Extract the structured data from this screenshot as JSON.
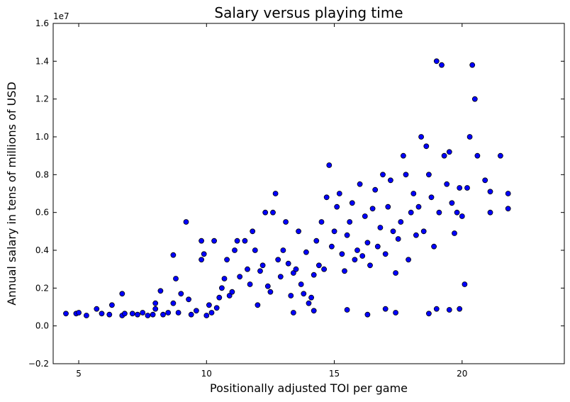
{
  "chart_data": {
    "type": "scatter",
    "title": "Salary versus playing time",
    "xlabel": "Positionally adjusted TOI per game",
    "ylabel": "Annual salary in tens of millions of USD",
    "y_offset_label": "1e7",
    "xlim": [
      4,
      24
    ],
    "ylim": [
      -2000000,
      16000000
    ],
    "xticks": [
      5,
      10,
      15,
      20
    ],
    "yticks": [
      -2000000,
      0,
      2000000,
      4000000,
      6000000,
      8000000,
      10000000,
      12000000,
      14000000,
      16000000
    ],
    "xtick_labels": [
      "5",
      "10",
      "15",
      "20"
    ],
    "ytick_labels": [
      "−0.2",
      "0.0",
      "0.2",
      "0.4",
      "0.6",
      "0.8",
      "1.0",
      "1.2",
      "1.4",
      "1.6"
    ],
    "grid": false,
    "marker_color": "#0000ff",
    "marker_edge": "#000000",
    "points": [
      [
        4.5,
        650000
      ],
      [
        4.9,
        650000
      ],
      [
        5.0,
        700000
      ],
      [
        5.3,
        550000
      ],
      [
        5.7,
        900000
      ],
      [
        5.9,
        650000
      ],
      [
        6.2,
        600000
      ],
      [
        6.3,
        1100000
      ],
      [
        6.7,
        550000
      ],
      [
        6.8,
        650000
      ],
      [
        6.7,
        1700000
      ],
      [
        7.1,
        650000
      ],
      [
        7.3,
        600000
      ],
      [
        7.5,
        700000
      ],
      [
        7.7,
        550000
      ],
      [
        7.9,
        600000
      ],
      [
        8.0,
        900000
      ],
      [
        8.0,
        1200000
      ],
      [
        8.2,
        1850000
      ],
      [
        8.3,
        600000
      ],
      [
        8.5,
        700000
      ],
      [
        8.7,
        1200000
      ],
      [
        8.7,
        3750000
      ],
      [
        8.8,
        2500000
      ],
      [
        8.9,
        700000
      ],
      [
        9.0,
        1700000
      ],
      [
        9.2,
        5500000
      ],
      [
        9.3,
        1400000
      ],
      [
        9.4,
        600000
      ],
      [
        9.6,
        800000
      ],
      [
        9.8,
        3500000
      ],
      [
        9.8,
        4500000
      ],
      [
        9.9,
        3800000
      ],
      [
        10.0,
        550000
      ],
      [
        10.1,
        1100000
      ],
      [
        10.2,
        700000
      ],
      [
        10.3,
        4500000
      ],
      [
        10.4,
        950000
      ],
      [
        10.5,
        1500000
      ],
      [
        10.6,
        2000000
      ],
      [
        10.7,
        2500000
      ],
      [
        10.8,
        3500000
      ],
      [
        10.9,
        1600000
      ],
      [
        11.0,
        1800000
      ],
      [
        11.1,
        4000000
      ],
      [
        11.2,
        4500000
      ],
      [
        11.3,
        2600000
      ],
      [
        11.5,
        4500000
      ],
      [
        11.6,
        3000000
      ],
      [
        11.7,
        2200000
      ],
      [
        11.8,
        5000000
      ],
      [
        11.9,
        4000000
      ],
      [
        12.0,
        1100000
      ],
      [
        12.1,
        2900000
      ],
      [
        12.2,
        3200000
      ],
      [
        12.3,
        6000000
      ],
      [
        12.4,
        2100000
      ],
      [
        12.5,
        1800000
      ],
      [
        12.6,
        6000000
      ],
      [
        12.7,
        7000000
      ],
      [
        12.8,
        3500000
      ],
      [
        12.9,
        2600000
      ],
      [
        13.0,
        4000000
      ],
      [
        13.1,
        5500000
      ],
      [
        13.2,
        3300000
      ],
      [
        13.3,
        1600000
      ],
      [
        13.4,
        2800000
      ],
      [
        13.5,
        3000000
      ],
      [
        13.6,
        5000000
      ],
      [
        13.7,
        2200000
      ],
      [
        13.8,
        1700000
      ],
      [
        13.9,
        3900000
      ],
      [
        14.0,
        1200000
      ],
      [
        14.1,
        1500000
      ],
      [
        14.2,
        2700000
      ],
      [
        14.3,
        4500000
      ],
      [
        14.4,
        3200000
      ],
      [
        14.5,
        5500000
      ],
      [
        14.6,
        3000000
      ],
      [
        14.7,
        6800000
      ],
      [
        14.8,
        8500000
      ],
      [
        14.9,
        4200000
      ],
      [
        15.0,
        5000000
      ],
      [
        15.1,
        6300000
      ],
      [
        15.2,
        7000000
      ],
      [
        15.3,
        3800000
      ],
      [
        15.4,
        2900000
      ],
      [
        15.5,
        4800000
      ],
      [
        15.6,
        5500000
      ],
      [
        15.7,
        6500000
      ],
      [
        15.8,
        3500000
      ],
      [
        15.9,
        4000000
      ],
      [
        16.0,
        7500000
      ],
      [
        16.1,
        3700000
      ],
      [
        16.2,
        5800000
      ],
      [
        16.3,
        4400000
      ],
      [
        16.4,
        3200000
      ],
      [
        16.5,
        6200000
      ],
      [
        16.6,
        7200000
      ],
      [
        16.7,
        4200000
      ],
      [
        16.8,
        5200000
      ],
      [
        16.9,
        8000000
      ],
      [
        17.0,
        3800000
      ],
      [
        17.1,
        6300000
      ],
      [
        17.2,
        7700000
      ],
      [
        17.3,
        5000000
      ],
      [
        17.4,
        2800000
      ],
      [
        17.5,
        4600000
      ],
      [
        17.6,
        5500000
      ],
      [
        17.7,
        9000000
      ],
      [
        17.8,
        8000000
      ],
      [
        17.9,
        3500000
      ],
      [
        18.0,
        6000000
      ],
      [
        18.1,
        7000000
      ],
      [
        18.2,
        4800000
      ],
      [
        18.3,
        6300000
      ],
      [
        18.4,
        10000000
      ],
      [
        18.5,
        5000000
      ],
      [
        18.6,
        9500000
      ],
      [
        18.7,
        8000000
      ],
      [
        18.8,
        6800000
      ],
      [
        18.9,
        4200000
      ],
      [
        19.0,
        14000000
      ],
      [
        19.1,
        6000000
      ],
      [
        19.2,
        13800000
      ],
      [
        19.3,
        9000000
      ],
      [
        19.4,
        7500000
      ],
      [
        19.5,
        9200000
      ],
      [
        19.6,
        6500000
      ],
      [
        19.7,
        4900000
      ],
      [
        19.8,
        6000000
      ],
      [
        19.9,
        7300000
      ],
      [
        20.0,
        5800000
      ],
      [
        20.1,
        2200000
      ],
      [
        20.2,
        7300000
      ],
      [
        20.3,
        10000000
      ],
      [
        20.4,
        13800000
      ],
      [
        20.5,
        12000000
      ],
      [
        20.6,
        9000000
      ],
      [
        20.9,
        7700000
      ],
      [
        21.1,
        7100000
      ],
      [
        21.1,
        6000000
      ],
      [
        21.5,
        9000000
      ],
      [
        21.8,
        7000000
      ],
      [
        21.8,
        6200000
      ],
      [
        16.3,
        600000
      ],
      [
        17.4,
        700000
      ],
      [
        18.7,
        650000
      ],
      [
        19.0,
        900000
      ],
      [
        19.5,
        850000
      ],
      [
        19.9,
        900000
      ],
      [
        17.0,
        900000
      ],
      [
        15.5,
        850000
      ],
      [
        14.2,
        800000
      ],
      [
        13.4,
        700000
      ]
    ]
  }
}
